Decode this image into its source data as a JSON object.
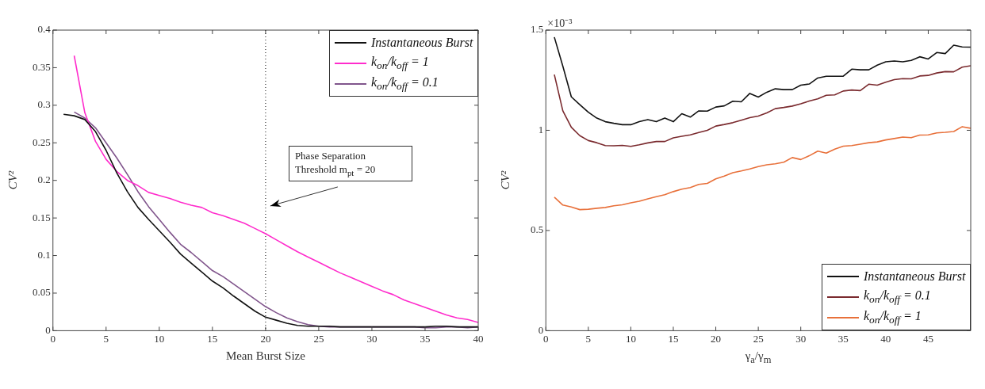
{
  "chart_data": [
    {
      "type": "line",
      "xlabel": "Mean Burst Size",
      "ylabel": "CV²",
      "xlim": [
        0,
        40
      ],
      "xticks": [
        0,
        5,
        10,
        15,
        20,
        25,
        30,
        35,
        40
      ],
      "ylim": [
        0,
        0.4
      ],
      "yticks": [
        0,
        0.05,
        0.1,
        0.15,
        0.2,
        0.25,
        0.3,
        0.35,
        0.4
      ],
      "legend": "top right",
      "marker": "none",
      "series": [
        {
          "name": "Instantaneous Burst",
          "color": "#111111",
          "x": [
            1,
            2,
            3,
            4,
            5,
            6,
            7,
            8,
            9,
            10,
            11,
            12,
            13,
            14,
            15,
            16,
            17,
            18,
            19,
            20,
            21,
            22,
            23,
            24,
            25,
            26,
            27,
            28,
            29,
            30,
            31,
            32,
            33,
            34,
            35,
            36,
            37,
            38,
            39,
            40
          ],
          "values": [
            0.288,
            0.286,
            0.281,
            0.265,
            0.24,
            0.21,
            0.185,
            0.164,
            0.148,
            0.133,
            0.118,
            0.102,
            0.09,
            0.078,
            0.066,
            0.057,
            0.046,
            0.036,
            0.026,
            0.018,
            0.014,
            0.01,
            0.007,
            0.006,
            0.006,
            0.006,
            0.005,
            0.005,
            0.005,
            0.005,
            0.005,
            0.005,
            0.005,
            0.005,
            0.005,
            0.006,
            0.006,
            0.005,
            0.005,
            0.005
          ]
        },
        {
          "name": "k$_{on}$/k$_{off}$ = 1",
          "color": "#ff2ccc",
          "x": [
            2,
            3,
            4,
            5,
            6,
            7,
            8,
            9,
            10,
            11,
            12,
            13,
            14,
            15,
            16,
            17,
            18,
            19,
            20,
            21,
            22,
            23,
            24,
            25,
            26,
            27,
            28,
            29,
            30,
            31,
            32,
            33,
            34,
            35,
            36,
            37,
            38,
            39,
            40
          ],
          "values": [
            0.366,
            0.29,
            0.252,
            0.228,
            0.212,
            0.2,
            0.193,
            0.184,
            0.18,
            0.176,
            0.171,
            0.167,
            0.164,
            0.157,
            0.153,
            0.148,
            0.143,
            0.136,
            0.129,
            0.121,
            0.113,
            0.105,
            0.098,
            0.091,
            0.084,
            0.077,
            0.071,
            0.065,
            0.059,
            0.053,
            0.048,
            0.041,
            0.036,
            0.031,
            0.026,
            0.021,
            0.017,
            0.015,
            0.011
          ]
        },
        {
          "name": "k$_{on}$/k$_{off}$ = 0.1",
          "color": "#80558c",
          "x": [
            2,
            3,
            4,
            5,
            6,
            7,
            8,
            9,
            10,
            11,
            12,
            13,
            14,
            15,
            16,
            17,
            18,
            19,
            20,
            21,
            22,
            23,
            24,
            25,
            26,
            27,
            28,
            29,
            30,
            31,
            32,
            33,
            34,
            35,
            36,
            37,
            38,
            39,
            40
          ],
          "values": [
            0.291,
            0.283,
            0.27,
            0.25,
            0.23,
            0.208,
            0.185,
            0.165,
            0.148,
            0.131,
            0.115,
            0.104,
            0.092,
            0.08,
            0.072,
            0.062,
            0.052,
            0.042,
            0.032,
            0.024,
            0.017,
            0.012,
            0.008,
            0.006,
            0.005,
            0.005,
            0.005,
            0.005,
            0.005,
            0.005,
            0.005,
            0.005,
            0.005,
            0.004,
            0.004,
            0.005,
            0.005,
            0.004,
            0.005
          ]
        }
      ],
      "ref_lines": [
        {
          "axis": "x",
          "value": 20,
          "line_style": "dotted",
          "color": "#333333"
        }
      ],
      "annotations": [
        "Phase Separation Threshold m$_{pt}$ = 20"
      ]
    },
    {
      "type": "line",
      "xlabel": "γ$_{a}$/γ$_{m}$",
      "ylabel": "CV²",
      "xlim": [
        0,
        50
      ],
      "xticks": [
        0,
        5,
        10,
        15,
        20,
        25,
        30,
        35,
        40,
        45
      ],
      "ylim": [
        0,
        1.5
      ],
      "yticks": [
        0,
        0.5,
        1,
        1.5
      ],
      "legend": "bottom right",
      "marker": "none",
      "series": [
        {
          "name": "Instantaneous Burst",
          "color": "#111111",
          "x": [
            1,
            2,
            3,
            4,
            5,
            6,
            7,
            8,
            9,
            10,
            11,
            12,
            13,
            14,
            15,
            16,
            17,
            18,
            19,
            20,
            21,
            22,
            23,
            24,
            25,
            26,
            27,
            28,
            29,
            30,
            31,
            32,
            33,
            34,
            35,
            36,
            37,
            38,
            39,
            40,
            41,
            42,
            43,
            44,
            45,
            46,
            47,
            48,
            49,
            50
          ],
          "values": [
            1.465,
            1.32,
            1.167,
            1.128,
            1.09,
            1.061,
            1.043,
            1.035,
            1.028,
            1.028,
            1.043,
            1.053,
            1.043,
            1.061,
            1.043,
            1.083,
            1.066,
            1.097,
            1.096,
            1.116,
            1.122,
            1.145,
            1.142,
            1.184,
            1.166,
            1.19,
            1.207,
            1.203,
            1.203,
            1.225,
            1.231,
            1.261,
            1.27,
            1.27,
            1.27,
            1.305,
            1.302,
            1.302,
            1.325,
            1.342,
            1.346,
            1.342,
            1.349,
            1.367,
            1.356,
            1.388,
            1.383,
            1.425,
            1.416,
            1.415
          ]
        },
        {
          "name": "k$_{on}$/k$_{off}$ = 0.1",
          "color": "#7a2a2e",
          "x": [
            1,
            2,
            3,
            4,
            5,
            6,
            7,
            8,
            9,
            10,
            11,
            12,
            13,
            14,
            15,
            16,
            17,
            18,
            19,
            20,
            21,
            22,
            23,
            24,
            25,
            26,
            27,
            28,
            29,
            30,
            31,
            32,
            33,
            34,
            35,
            36,
            37,
            38,
            39,
            40,
            41,
            42,
            43,
            44,
            45,
            46,
            47,
            48,
            49,
            50
          ],
          "values": [
            1.278,
            1.097,
            1.015,
            0.973,
            0.949,
            0.938,
            0.924,
            0.923,
            0.925,
            0.92,
            0.928,
            0.937,
            0.944,
            0.944,
            0.962,
            0.97,
            0.977,
            0.989,
            1.0,
            1.021,
            1.029,
            1.038,
            1.05,
            1.063,
            1.071,
            1.087,
            1.108,
            1.114,
            1.121,
            1.132,
            1.146,
            1.157,
            1.175,
            1.177,
            1.196,
            1.201,
            1.198,
            1.23,
            1.225,
            1.24,
            1.253,
            1.258,
            1.257,
            1.271,
            1.274,
            1.286,
            1.293,
            1.292,
            1.315,
            1.322
          ]
        },
        {
          "name": "k$_{on}$/k$_{off}$ = 1",
          "color": "#e8703a",
          "x": [
            1,
            2,
            3,
            4,
            5,
            6,
            7,
            8,
            9,
            10,
            11,
            12,
            13,
            14,
            15,
            16,
            17,
            18,
            19,
            20,
            21,
            22,
            23,
            24,
            25,
            26,
            27,
            28,
            29,
            30,
            31,
            32,
            33,
            34,
            35,
            36,
            37,
            38,
            39,
            40,
            41,
            42,
            43,
            44,
            45,
            46,
            47,
            48,
            49,
            50
          ],
          "values": [
            0.666,
            0.627,
            0.617,
            0.604,
            0.606,
            0.611,
            0.615,
            0.623,
            0.628,
            0.638,
            0.646,
            0.658,
            0.669,
            0.679,
            0.694,
            0.706,
            0.714,
            0.73,
            0.735,
            0.758,
            0.772,
            0.788,
            0.797,
            0.807,
            0.819,
            0.828,
            0.833,
            0.841,
            0.864,
            0.854,
            0.873,
            0.896,
            0.886,
            0.906,
            0.921,
            0.924,
            0.931,
            0.938,
            0.942,
            0.952,
            0.959,
            0.966,
            0.963,
            0.976,
            0.977,
            0.987,
            0.99,
            0.994,
            1.018,
            1.01
          ]
        }
      ],
      "annotations": [
        "×10⁻³"
      ]
    }
  ]
}
